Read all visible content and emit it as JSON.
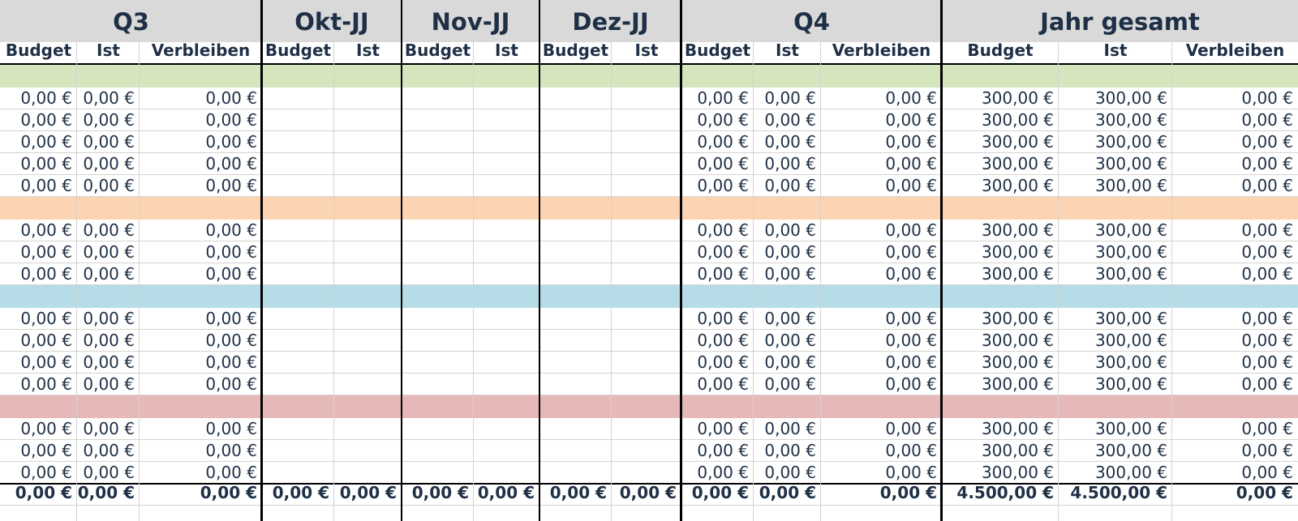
{
  "groups": [
    {
      "title": "Q3",
      "sub": [
        "Budget",
        "Ist",
        "Verbleiben"
      ]
    },
    {
      "title": "Okt-JJ",
      "sub": [
        "Budget",
        "Ist"
      ]
    },
    {
      "title": "Nov-JJ",
      "sub": [
        "Budget",
        "Ist"
      ]
    },
    {
      "title": "Dez-JJ",
      "sub": [
        "Budget",
        "Ist"
      ]
    },
    {
      "title": "Q4",
      "sub": [
        "Budget",
        "Ist",
        "Verbleiben"
      ]
    },
    {
      "title": "Jahr gesamt",
      "sub": [
        "Budget",
        "Ist",
        "Verbleiben"
      ]
    }
  ],
  "colors": {
    "header_bg": "#d9d9d9",
    "green": "#d5e5bd",
    "orange": "#fdd4b2",
    "blue": "#b6dde7",
    "pink": "#e6b8b8"
  },
  "sections": [
    {
      "color": "green",
      "rows": [
        {
          "q3": [
            "0,00 €",
            "0,00 €",
            "0,00 €"
          ],
          "q4": [
            "0,00 €",
            "0,00 €",
            "0,00 €"
          ],
          "year": [
            "300,00 €",
            "300,00 €",
            "0,00 €"
          ]
        },
        {
          "q3": [
            "0,00 €",
            "0,00 €",
            "0,00 €"
          ],
          "q4": [
            "0,00 €",
            "0,00 €",
            "0,00 €"
          ],
          "year": [
            "300,00 €",
            "300,00 €",
            "0,00 €"
          ]
        },
        {
          "q3": [
            "0,00 €",
            "0,00 €",
            "0,00 €"
          ],
          "q4": [
            "0,00 €",
            "0,00 €",
            "0,00 €"
          ],
          "year": [
            "300,00 €",
            "300,00 €",
            "0,00 €"
          ]
        },
        {
          "q3": [
            "0,00 €",
            "0,00 €",
            "0,00 €"
          ],
          "q4": [
            "0,00 €",
            "0,00 €",
            "0,00 €"
          ],
          "year": [
            "300,00 €",
            "300,00 €",
            "0,00 €"
          ]
        },
        {
          "q3": [
            "0,00 €",
            "0,00 €",
            "0,00 €"
          ],
          "q4": [
            "0,00 €",
            "0,00 €",
            "0,00 €"
          ],
          "year": [
            "300,00 €",
            "300,00 €",
            "0,00 €"
          ]
        }
      ]
    },
    {
      "color": "orange",
      "rows": [
        {
          "q3": [
            "0,00 €",
            "0,00 €",
            "0,00 €"
          ],
          "q4": [
            "0,00 €",
            "0,00 €",
            "0,00 €"
          ],
          "year": [
            "300,00 €",
            "300,00 €",
            "0,00 €"
          ]
        },
        {
          "q3": [
            "0,00 €",
            "0,00 €",
            "0,00 €"
          ],
          "q4": [
            "0,00 €",
            "0,00 €",
            "0,00 €"
          ],
          "year": [
            "300,00 €",
            "300,00 €",
            "0,00 €"
          ]
        },
        {
          "q3": [
            "0,00 €",
            "0,00 €",
            "0,00 €"
          ],
          "q4": [
            "0,00 €",
            "0,00 €",
            "0,00 €"
          ],
          "year": [
            "300,00 €",
            "300,00 €",
            "0,00 €"
          ]
        }
      ]
    },
    {
      "color": "blue",
      "rows": [
        {
          "q3": [
            "0,00 €",
            "0,00 €",
            "0,00 €"
          ],
          "q4": [
            "0,00 €",
            "0,00 €",
            "0,00 €"
          ],
          "year": [
            "300,00 €",
            "300,00 €",
            "0,00 €"
          ]
        },
        {
          "q3": [
            "0,00 €",
            "0,00 €",
            "0,00 €"
          ],
          "q4": [
            "0,00 €",
            "0,00 €",
            "0,00 €"
          ],
          "year": [
            "300,00 €",
            "300,00 €",
            "0,00 €"
          ]
        },
        {
          "q3": [
            "0,00 €",
            "0,00 €",
            "0,00 €"
          ],
          "q4": [
            "0,00 €",
            "0,00 €",
            "0,00 €"
          ],
          "year": [
            "300,00 €",
            "300,00 €",
            "0,00 €"
          ]
        },
        {
          "q3": [
            "0,00 €",
            "0,00 €",
            "0,00 €"
          ],
          "q4": [
            "0,00 €",
            "0,00 €",
            "0,00 €"
          ],
          "year": [
            "300,00 €",
            "300,00 €",
            "0,00 €"
          ]
        }
      ]
    },
    {
      "color": "pink",
      "rows": [
        {
          "q3": [
            "0,00 €",
            "0,00 €",
            "0,00 €"
          ],
          "q4": [
            "0,00 €",
            "0,00 €",
            "0,00 €"
          ],
          "year": [
            "300,00 €",
            "300,00 €",
            "0,00 €"
          ]
        },
        {
          "q3": [
            "0,00 €",
            "0,00 €",
            "0,00 €"
          ],
          "q4": [
            "0,00 €",
            "0,00 €",
            "0,00 €"
          ],
          "year": [
            "300,00 €",
            "300,00 €",
            "0,00 €"
          ]
        },
        {
          "q3": [
            "0,00 €",
            "0,00 €",
            "0,00 €"
          ],
          "q4": [
            "0,00 €",
            "0,00 €",
            "0,00 €"
          ],
          "year": [
            "300,00 €",
            "300,00 €",
            "0,00 €"
          ]
        }
      ]
    }
  ],
  "totals": [
    "0,00 €",
    "0,00 €",
    "0,00 €",
    "0,00 €",
    "0,00 €",
    "0,00 €",
    "0,00 €",
    "0,00 €",
    "0,00 €",
    "0,00 €",
    "0,00 €",
    "0,00 €",
    "4.500,00 €",
    "4.500,00 €",
    "0,00 €"
  ]
}
